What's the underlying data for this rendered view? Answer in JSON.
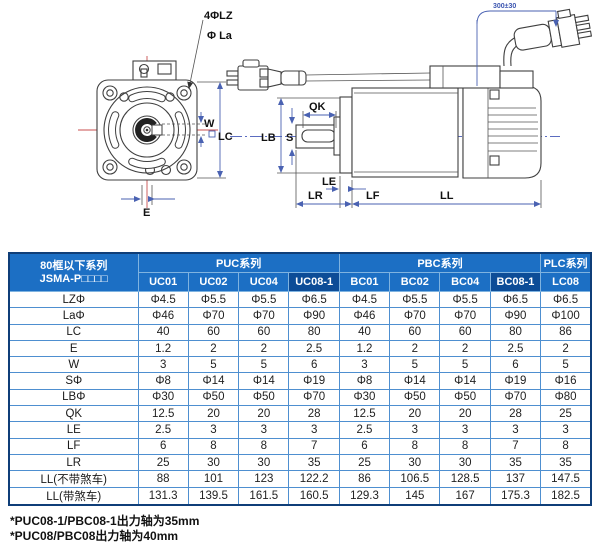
{
  "colors": {
    "header_blue": "#1c6fc4",
    "header_dark_blue": "#0c4c97",
    "grid_border": "#4e8fd0",
    "outer_border": "#0f3e78",
    "dimension_blue": "#4a62b2",
    "centerline_red": "#c94f4f",
    "body_text": "#222222"
  },
  "diagram": {
    "front_labels": {
      "bolt_holes": "4ΦLZ",
      "flange_diameter": "Φ La",
      "key_width": "W",
      "frame_size": "LC",
      "key_offset": "E"
    },
    "side_labels": {
      "key_length": "QK",
      "shaft_diameter": "S",
      "pilot_diameter": "LB",
      "le": "LE",
      "shaft_length": "LR",
      "lf": "LF",
      "body_length": "LL",
      "cable_length": "300±30"
    }
  },
  "table": {
    "corner": {
      "line1": "80框以下系列",
      "line2": "JSMA-P□□□□"
    },
    "groups": [
      {
        "label": "PUC系列",
        "span": 4,
        "dark": false
      },
      {
        "label": "PBC系列",
        "span": 4,
        "dark": false
      },
      {
        "label": "PLC系列",
        "span": 1,
        "dark": false
      }
    ],
    "columns": [
      {
        "label": "UC01",
        "dark": false
      },
      {
        "label": "UC02",
        "dark": false
      },
      {
        "label": "UC04",
        "dark": false
      },
      {
        "label": "UC08-1",
        "dark": true
      },
      {
        "label": "BC01",
        "dark": false
      },
      {
        "label": "BC02",
        "dark": false
      },
      {
        "label": "BC04",
        "dark": false
      },
      {
        "label": "BC08-1",
        "dark": true
      },
      {
        "label": "LC08",
        "dark": false
      }
    ],
    "rows": [
      {
        "label": "LZΦ",
        "values": [
          "Φ4.5",
          "Φ5.5",
          "Φ5.5",
          "Φ6.5",
          "Φ4.5",
          "Φ5.5",
          "Φ5.5",
          "Φ6.5",
          "Φ6.5"
        ]
      },
      {
        "label": "LaΦ",
        "values": [
          "Φ46",
          "Φ70",
          "Φ70",
          "Φ90",
          "Φ46",
          "Φ70",
          "Φ70",
          "Φ90",
          "Φ100"
        ]
      },
      {
        "label": "LC",
        "values": [
          "40",
          "60",
          "60",
          "80",
          "40",
          "60",
          "60",
          "80",
          "86"
        ]
      },
      {
        "label": "E",
        "values": [
          "1.2",
          "2",
          "2",
          "2.5",
          "1.2",
          "2",
          "2",
          "2.5",
          "2"
        ]
      },
      {
        "label": "W",
        "values": [
          "3",
          "5",
          "5",
          "6",
          "3",
          "5",
          "5",
          "6",
          "5"
        ]
      },
      {
        "label": "SΦ",
        "values": [
          "Φ8",
          "Φ14",
          "Φ14",
          "Φ19",
          "Φ8",
          "Φ14",
          "Φ14",
          "Φ19",
          "Φ16"
        ]
      },
      {
        "label": "LBΦ",
        "values": [
          "Φ30",
          "Φ50",
          "Φ50",
          "Φ70",
          "Φ30",
          "Φ50",
          "Φ50",
          "Φ70",
          "Φ80"
        ]
      },
      {
        "label": "QK",
        "values": [
          "12.5",
          "20",
          "20",
          "28",
          "12.5",
          "20",
          "20",
          "28",
          "25"
        ]
      },
      {
        "label": "LE",
        "values": [
          "2.5",
          "3",
          "3",
          "3",
          "2.5",
          "3",
          "3",
          "3",
          "3"
        ]
      },
      {
        "label": "LF",
        "values": [
          "6",
          "8",
          "8",
          "7",
          "6",
          "8",
          "8",
          "7",
          "8"
        ]
      },
      {
        "label": "LR",
        "values": [
          "25",
          "30",
          "30",
          "35",
          "25",
          "30",
          "30",
          "35",
          "35"
        ]
      },
      {
        "label": "LL(不带煞车)",
        "values": [
          "88",
          "101",
          "123",
          "122.2",
          "86",
          "106.5",
          "128.5",
          "137",
          "147.5"
        ]
      },
      {
        "label": "LL(带煞车)",
        "values": [
          "131.3",
          "139.5",
          "161.5",
          "160.5",
          "129.3",
          "145",
          "167",
          "175.3",
          "182.5"
        ]
      }
    ]
  },
  "footnotes": [
    "*PUC08-1/PBC08-1出力轴为35mm",
    "*PUC08/PBC08出力轴为40mm"
  ]
}
